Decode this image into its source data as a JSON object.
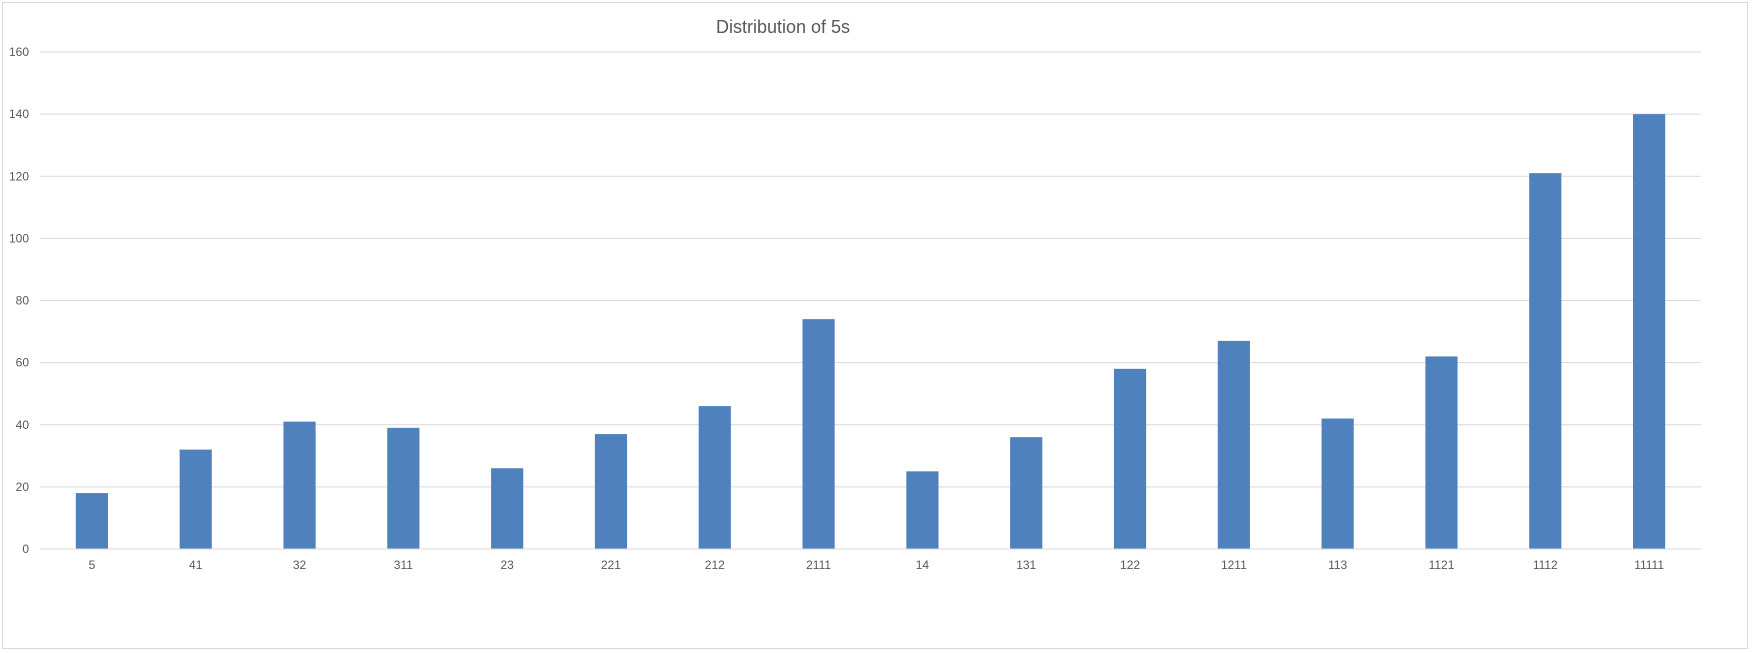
{
  "chart_data": {
    "type": "bar",
    "title": "Distribution of 5s",
    "xlabel": "",
    "ylabel": "",
    "categories": [
      "5",
      "41",
      "32",
      "311",
      "23",
      "221",
      "212",
      "2111",
      "14",
      "131",
      "122",
      "1211",
      "113",
      "1121",
      "1112",
      "11111"
    ],
    "values": [
      18,
      32,
      41,
      39,
      26,
      37,
      46,
      74,
      25,
      36,
      58,
      67,
      42,
      62,
      121,
      140
    ],
    "ylim": [
      0,
      160
    ],
    "yticks": [
      0,
      20,
      40,
      60,
      80,
      100,
      120,
      140,
      160
    ],
    "grid": true,
    "legend": "none",
    "bar_color": "#4f81bd"
  }
}
